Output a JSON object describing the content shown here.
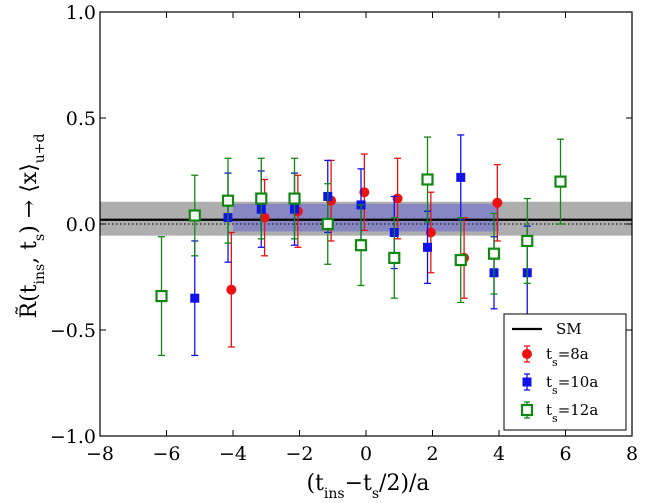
{
  "chart_data": {
    "type": "scatter",
    "title": "",
    "xlabel": "(t_ins − t_s/2)/a",
    "ylabel": "R̃(t_ins, t_s) → ⟨x⟩_u+d",
    "xlim": [
      -8,
      8
    ],
    "ylim": [
      -1.0,
      1.0
    ],
    "x_ticks": [
      -8,
      -6,
      -4,
      -2,
      0,
      2,
      4,
      6,
      8
    ],
    "x_tick_labels": [
      "−8",
      "−6",
      "−4",
      "−2",
      "0",
      "2",
      "4",
      "6",
      "8"
    ],
    "y_ticks": [
      -1.0,
      -0.5,
      0.0,
      0.5,
      1.0
    ],
    "y_tick_labels": [
      "−1.0",
      "−0.5",
      "0.0",
      "0.5",
      "1.0"
    ],
    "grid": false,
    "legend_position": "bottom-right",
    "sm_line": {
      "name": "SM",
      "y": 0.02,
      "color": "#000000"
    },
    "reference_line": {
      "y": 0.0,
      "style": "dotted"
    },
    "bands": [
      {
        "name": "gray-band",
        "x_range": [
          -8,
          8
        ],
        "y_range": [
          -0.055,
          0.105
        ],
        "color": "#a0a0a0"
      },
      {
        "name": "blue-band",
        "x_range": [
          -4.0,
          4.0
        ],
        "y_range": [
          -0.035,
          0.095
        ],
        "color": "#8080c8"
      }
    ],
    "series": [
      {
        "name": "t_s=8a",
        "legend_base": "t",
        "legend_sub": "s",
        "legend_rest": "=8a",
        "marker": "circle",
        "color": "#ee1111",
        "x": [
          -4,
          -3,
          -2,
          -1,
          0,
          1,
          2,
          3,
          4
        ],
        "y": [
          -0.31,
          0.03,
          0.06,
          0.11,
          0.15,
          0.12,
          -0.04,
          -0.16,
          0.1
        ],
        "err": [
          0.27,
          0.18,
          0.17,
          0.19,
          0.18,
          0.19,
          0.19,
          0.19,
          0.18
        ]
      },
      {
        "name": "t_s=10a",
        "legend_base": "t",
        "legend_sub": "s",
        "legend_rest": "=10a",
        "marker": "square",
        "color": "#1111ee",
        "x": [
          -5,
          -4,
          -3,
          -2,
          -1,
          0,
          1,
          2,
          3,
          4,
          5
        ],
        "y": [
          -0.35,
          0.03,
          0.07,
          0.07,
          0.13,
          0.09,
          -0.04,
          -0.11,
          0.22,
          -0.23,
          -0.23
        ],
        "err": [
          0.27,
          0.21,
          0.18,
          0.17,
          0.17,
          0.17,
          0.17,
          0.17,
          0.2,
          0.17,
          0.22
        ]
      },
      {
        "name": "t_s=12a",
        "legend_base": "t",
        "legend_sub": "s",
        "legend_rest": "=12a",
        "marker": "open-square",
        "color": "#118811",
        "x": [
          -6,
          -5,
          -4,
          -3,
          -2,
          -1,
          0,
          1,
          2,
          3,
          4,
          5,
          6
        ],
        "y": [
          -0.34,
          0.04,
          0.11,
          0.12,
          0.12,
          0.0,
          -0.1,
          -0.16,
          0.21,
          -0.17,
          -0.14,
          -0.08,
          0.2
        ],
        "err": [
          0.28,
          0.19,
          0.2,
          0.19,
          0.19,
          0.19,
          0.19,
          0.19,
          0.2,
          0.2,
          0.19,
          0.2,
          0.2
        ]
      }
    ]
  }
}
